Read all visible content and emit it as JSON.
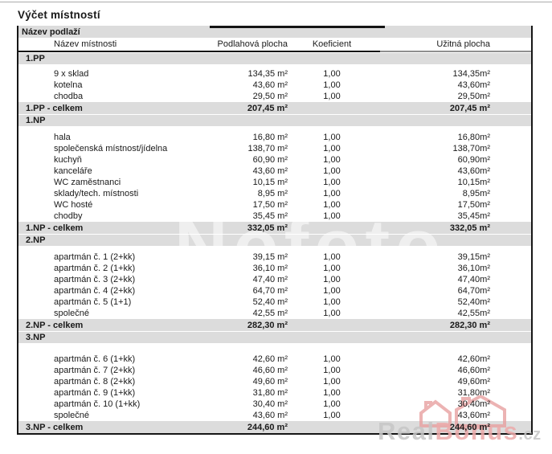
{
  "page": {
    "title": "Výčet místností"
  },
  "table": {
    "floor_header": "Název podlaží",
    "columns": [
      "Název místnosti",
      "Podlahová plocha",
      "Koeficient",
      "Užitná plocha"
    ],
    "sections": [
      {
        "name": "1.PP",
        "rows": [
          {
            "name": "9 x sklad",
            "floor_area": "134,35 m²",
            "coefficient": "1,00",
            "usable_area": "134,35m²"
          },
          {
            "name": "kotelna",
            "floor_area": "43,60 m²",
            "coefficient": "1,00",
            "usable_area": "43,60m²"
          },
          {
            "name": "chodba",
            "floor_area": "29,50 m²",
            "coefficient": "1,00",
            "usable_area": "29,50m²"
          }
        ],
        "total": {
          "label": "1.PP - celkem",
          "floor_area": "207,45 m²",
          "usable_area": "207,45 m²"
        }
      },
      {
        "name": "1.NP",
        "rows": [
          {
            "name": "hala",
            "floor_area": "16,80 m²",
            "coefficient": "1,00",
            "usable_area": "16,80m²"
          },
          {
            "name": "společenská místnost/jídelna",
            "floor_area": "138,70 m²",
            "coefficient": "1,00",
            "usable_area": "138,70m²"
          },
          {
            "name": "kuchyň",
            "floor_area": "60,90 m²",
            "coefficient": "1,00",
            "usable_area": "60,90m²"
          },
          {
            "name": "kanceláře",
            "floor_area": "43,60 m²",
            "coefficient": "1,00",
            "usable_area": "43,60m²"
          },
          {
            "name": "WC zaměstnanci",
            "floor_area": "10,15 m²",
            "coefficient": "1,00",
            "usable_area": "10,15m²"
          },
          {
            "name": "sklady/tech. místnosti",
            "floor_area": "8,95 m²",
            "coefficient": "1,00",
            "usable_area": "8,95m²"
          },
          {
            "name": "WC hosté",
            "floor_area": "17,50 m²",
            "coefficient": "1,00",
            "usable_area": "17,50m²"
          },
          {
            "name": "chodby",
            "floor_area": "35,45 m²",
            "coefficient": "1,00",
            "usable_area": "35,45m²"
          }
        ],
        "total": {
          "label": "1.NP - celkem",
          "floor_area": "332,05 m²",
          "usable_area": "332,05 m²"
        }
      },
      {
        "name": "2.NP",
        "rows": [
          {
            "name": "apartmán č. 1 (2+kk)",
            "floor_area": "39,15 m²",
            "coefficient": "1,00",
            "usable_area": "39,15m²"
          },
          {
            "name": "apartmán č. 2 (1+kk)",
            "floor_area": "36,10 m²",
            "coefficient": "1,00",
            "usable_area": "36,10m²"
          },
          {
            "name": "apartmán č. 3 (2+kk)",
            "floor_area": "47,40 m²",
            "coefficient": "1,00",
            "usable_area": "47,40m²"
          },
          {
            "name": "apartmán č. 4 (2+kk)",
            "floor_area": "64,70 m²",
            "coefficient": "1,00",
            "usable_area": "64,70m²"
          },
          {
            "name": "apartmán č. 5 (1+1)",
            "floor_area": "52,40 m²",
            "coefficient": "1,00",
            "usable_area": "52,40m²"
          },
          {
            "name": "společné",
            "floor_area": "42,55 m²",
            "coefficient": "1,00",
            "usable_area": "42,55m²"
          }
        ],
        "total": {
          "label": "2.NP - celkem",
          "floor_area": "282,30 m²",
          "usable_area": "282,30 m²"
        }
      },
      {
        "name": "3.NP",
        "rows": [
          {
            "name": "apartmán č. 6 (1+kk)",
            "floor_area": "42,60 m²",
            "coefficient": "1,00",
            "usable_area": "42,60m²"
          },
          {
            "name": "apartmán č. 7 (2+kk)",
            "floor_area": "46,60 m²",
            "coefficient": "1,00",
            "usable_area": "46,60m²"
          },
          {
            "name": "apartmán č. 8 (2+kk)",
            "floor_area": "49,60 m²",
            "coefficient": "1,00",
            "usable_area": "49,60m²"
          },
          {
            "name": "apartmán č. 9 (1+kk)",
            "floor_area": "31,80 m²",
            "coefficient": "1,00",
            "usable_area": "31,80m²"
          },
          {
            "name": "apartmán č. 10 (1+kk)",
            "floor_area": "30,40 m²",
            "coefficient": "1,00",
            "usable_area": "30,40m²"
          },
          {
            "name": "společné",
            "floor_area": "43,60 m²",
            "coefficient": "1,00",
            "usable_area": "43,60m²"
          }
        ],
        "total": {
          "label": "3.NP - celkem",
          "floor_area": "244,60 m²",
          "usable_area": "244,60 m²"
        }
      }
    ]
  },
  "watermarks": {
    "faint_text": "Nofoto",
    "brand": {
      "gray_part": "Real",
      "accent_part": "Bonus",
      "suffix": ".cz"
    },
    "colors": {
      "accent_pink": "#edaaaa",
      "gray": "#c6c6c6",
      "band_gray": "#dcdcdc"
    }
  }
}
